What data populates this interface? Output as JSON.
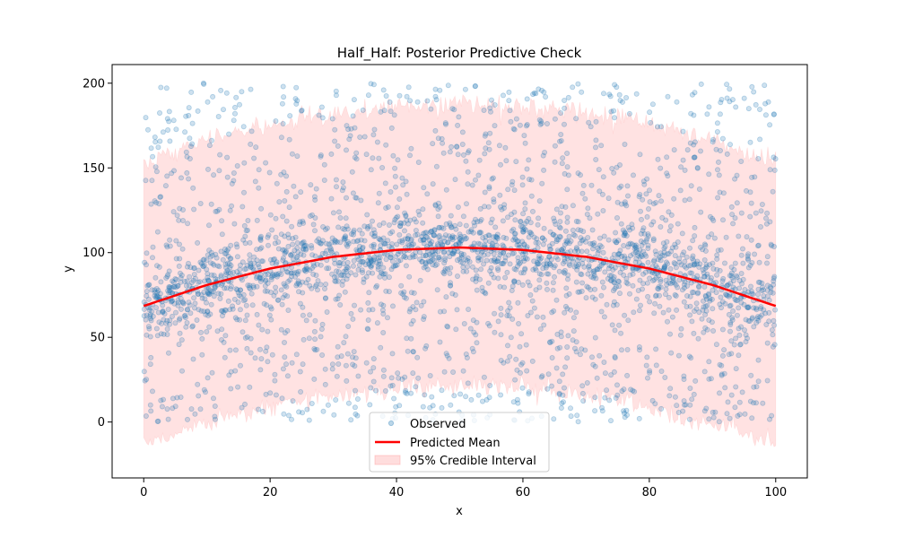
{
  "chart_data": {
    "type": "scatter",
    "title": "Half_Half: Posterior Predictive Check",
    "xlabel": "x",
    "ylabel": "y",
    "xlim": [
      -5,
      105
    ],
    "ylim": [
      -33,
      211
    ],
    "xticks": [
      0,
      20,
      40,
      60,
      80,
      100
    ],
    "yticks": [
      0,
      50,
      100,
      150,
      200
    ],
    "grid": false,
    "legend_position": "bottom-center",
    "legend": [
      "Observed",
      "Predicted Mean",
      "95% Credible Interval"
    ],
    "colors": {
      "observed": "#1f77b4",
      "predicted_mean": "#ff0000",
      "interval": "#ffb3b3"
    },
    "observed": {
      "count": 3000,
      "description_model": {
        "core_fraction": 0.5,
        "core_mean": "0.0138*x*(100-x)+68.5",
        "core_sd": 11,
        "uniform_range": [
          0,
          200
        ]
      }
    },
    "predicted_mean": {
      "x": [
        0,
        10,
        20,
        30,
        40,
        50,
        60,
        70,
        80,
        90,
        100
      ],
      "y": [
        68.5,
        80.9,
        90.6,
        97.5,
        101.6,
        103.0,
        101.6,
        97.5,
        90.6,
        80.9,
        68.5
      ]
    },
    "credible_interval": {
      "x": [
        0,
        10,
        20,
        30,
        40,
        50,
        60,
        70,
        80,
        90,
        100
      ],
      "lower": [
        -13.5,
        -1.1,
        8.6,
        15.5,
        19.6,
        21.0,
        19.6,
        15.5,
        8.6,
        -1.1,
        -13.5
      ],
      "upper": [
        153.5,
        165.9,
        175.6,
        182.5,
        186.6,
        188.0,
        186.6,
        182.5,
        175.6,
        165.9,
        153.5
      ]
    }
  }
}
